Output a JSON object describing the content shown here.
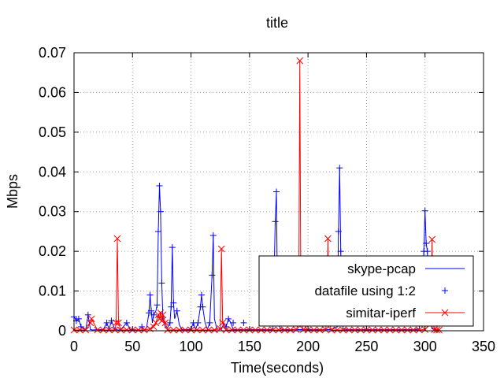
{
  "chart_data": {
    "type": "line",
    "title": "title",
    "xlabel": "Time(seconds)",
    "ylabel": "Mbps",
    "xlim": [
      0,
      350
    ],
    "ylim": [
      0,
      0.07
    ],
    "x_ticks": [
      "0",
      "50",
      "100",
      "150",
      "200",
      "250",
      "300",
      "350"
    ],
    "y_ticks": [
      "0",
      "0.01",
      "0.02",
      "0.03",
      "0.04",
      "0.05",
      "0.06",
      "0.07"
    ],
    "grid": true,
    "legend_position": "bottom-right",
    "series": [
      {
        "name": "skype-pcap",
        "style": "line",
        "color": "#0000ff",
        "x": [
          0,
          2,
          4,
          6,
          8,
          10,
          12,
          14,
          16,
          20,
          25,
          28,
          30,
          32,
          35,
          38,
          40,
          45,
          48,
          50,
          55,
          58,
          60,
          62,
          64,
          65,
          66,
          67,
          68,
          70,
          71,
          72,
          73,
          74,
          75,
          76,
          78,
          80,
          82,
          83,
          84,
          85,
          86,
          88,
          90,
          92,
          95,
          98,
          100,
          102,
          104,
          106,
          108,
          109,
          110,
          112,
          114,
          116,
          118,
          119,
          120,
          122,
          124,
          126,
          128,
          130,
          132,
          134,
          136,
          140,
          145,
          150,
          155,
          160,
          165,
          170,
          172,
          173,
          174,
          176,
          178,
          180,
          185,
          190,
          195,
          200,
          205,
          210,
          215,
          220,
          225,
          226,
          227,
          228,
          229,
          230,
          235,
          240,
          245,
          250,
          255,
          260,
          265,
          270,
          275,
          280,
          285,
          290,
          295,
          298,
          299,
          300,
          301,
          302,
          304,
          306,
          308,
          310,
          312
        ],
        "y": [
          0.0035,
          0.0025,
          0.003,
          0.001,
          0.0005,
          0.0003,
          0.004,
          0.0003,
          0.0002,
          0.0003,
          0.0003,
          0.002,
          0.0004,
          0.0025,
          0.0003,
          0.0002,
          0.0003,
          0.002,
          0.0003,
          0.0003,
          0.0002,
          0.001,
          0.0003,
          0.0007,
          0.0045,
          0.009,
          0.005,
          0.002,
          0.004,
          0.005,
          0.0065,
          0.025,
          0.0365,
          0.03,
          0.012,
          0.003,
          0.001,
          0.0008,
          0.002,
          0.006,
          0.021,
          0.007,
          0.003,
          0.005,
          0.0015,
          0.0004,
          0.0003,
          0.0003,
          0.0005,
          0.002,
          0.0004,
          0.002,
          0.006,
          0.009,
          0.006,
          0.002,
          0.0004,
          0.002,
          0.014,
          0.024,
          0.003,
          0.0005,
          0.0004,
          0.0003,
          0.002,
          0.001,
          0.003,
          0.002,
          0.0003,
          0.0003,
          0.0003,
          0.0003,
          0.0003,
          0.0003,
          0.0003,
          0.0003,
          0.0275,
          0.035,
          0.005,
          0.0005,
          0.0004,
          0.0003,
          0.0003,
          0.0003,
          0.0003,
          0.0003,
          0.0003,
          0.0003,
          0.0003,
          0.0003,
          0.001,
          0.025,
          0.041,
          0.02,
          0.005,
          0.0005,
          0.0003,
          0.0003,
          0.0003,
          0.0003,
          0.0003,
          0.0003,
          0.0003,
          0.0003,
          0.0003,
          0.0003,
          0.0003,
          0.0003,
          0.0005,
          0.01,
          0.02,
          0.0302,
          0.022,
          0.02,
          0.0025,
          0.0005,
          0.0003,
          0.0003,
          0.0002
        ]
      },
      {
        "name": "datafile using 1:2",
        "style": "points",
        "marker": "+",
        "color": "#0000ff",
        "x": [
          0,
          2,
          4,
          6,
          12,
          28,
          32,
          45,
          58,
          64,
          65,
          66,
          68,
          71,
          72,
          73,
          74,
          75,
          82,
          83,
          84,
          85,
          88,
          102,
          106,
          108,
          109,
          110,
          116,
          118,
          119,
          130,
          132,
          136,
          145,
          172,
          173,
          174,
          226,
          227,
          228,
          229,
          298,
          299,
          300,
          301,
          302,
          304
        ],
        "y": [
          0.0035,
          0.0025,
          0.003,
          0.001,
          0.004,
          0.002,
          0.0025,
          0.002,
          0.001,
          0.0045,
          0.009,
          0.005,
          0.004,
          0.0065,
          0.025,
          0.0365,
          0.03,
          0.012,
          0.002,
          0.006,
          0.021,
          0.007,
          0.005,
          0.002,
          0.002,
          0.006,
          0.009,
          0.006,
          0.002,
          0.014,
          0.024,
          0.001,
          0.003,
          0.002,
          0.002,
          0.0275,
          0.035,
          0.005,
          0.025,
          0.041,
          0.02,
          0.005,
          0.01,
          0.02,
          0.0302,
          0.022,
          0.02,
          0.0025
        ]
      },
      {
        "name": "simitar-iperf",
        "style": "linespoints",
        "marker": "x",
        "color": "#ff0000",
        "x": [
          0,
          5,
          10,
          14,
          15,
          20,
          25,
          30,
          35,
          36,
          37,
          38,
          40,
          45,
          50,
          55,
          60,
          65,
          68,
          70,
          72,
          73,
          74,
          75,
          76,
          78,
          80,
          85,
          90,
          95,
          100,
          105,
          110,
          115,
          120,
          125,
          126,
          127,
          130,
          135,
          140,
          145,
          150,
          155,
          160,
          165,
          170,
          175,
          180,
          185,
          190,
          192,
          193,
          194,
          196,
          200,
          205,
          210,
          215,
          216,
          217,
          218,
          220,
          225,
          230,
          235,
          240,
          245,
          250,
          255,
          260,
          265,
          270,
          275,
          280,
          285,
          290,
          295,
          300,
          305,
          306,
          307,
          308,
          310,
          312
        ],
        "y": [
          0.0002,
          0.0002,
          0.0002,
          0.002,
          0.003,
          0.0002,
          0.0002,
          0.0002,
          0.0002,
          0.002,
          0.0232,
          0.002,
          0.0002,
          0.0002,
          0.0002,
          0.0002,
          0.0002,
          0.0005,
          0.001,
          0.002,
          0.004,
          0.003,
          0.0045,
          0.0025,
          0.004,
          0.002,
          0.0002,
          0.0002,
          0.0002,
          0.0002,
          0.0002,
          0.0002,
          0.0002,
          0.0002,
          0.0002,
          0.0005,
          0.0206,
          0.002,
          0.0002,
          0.0002,
          0.0002,
          0.0002,
          0.0002,
          0.0002,
          0.0002,
          0.0002,
          0.0002,
          0.0002,
          0.0002,
          0.0002,
          0.0003,
          0.002,
          0.068,
          0.002,
          0.0003,
          0.0002,
          0.0002,
          0.0002,
          0.0003,
          0.002,
          0.0232,
          0.002,
          0.0002,
          0.0002,
          0.0002,
          0.0002,
          0.0002,
          0.0002,
          0.0002,
          0.0002,
          0.0002,
          0.0002,
          0.0002,
          0.0002,
          0.0002,
          0.0002,
          0.0002,
          0.0002,
          0.0003,
          0.002,
          0.023,
          0.002,
          0.0003,
          0.0002,
          0.0002
        ]
      }
    ]
  }
}
